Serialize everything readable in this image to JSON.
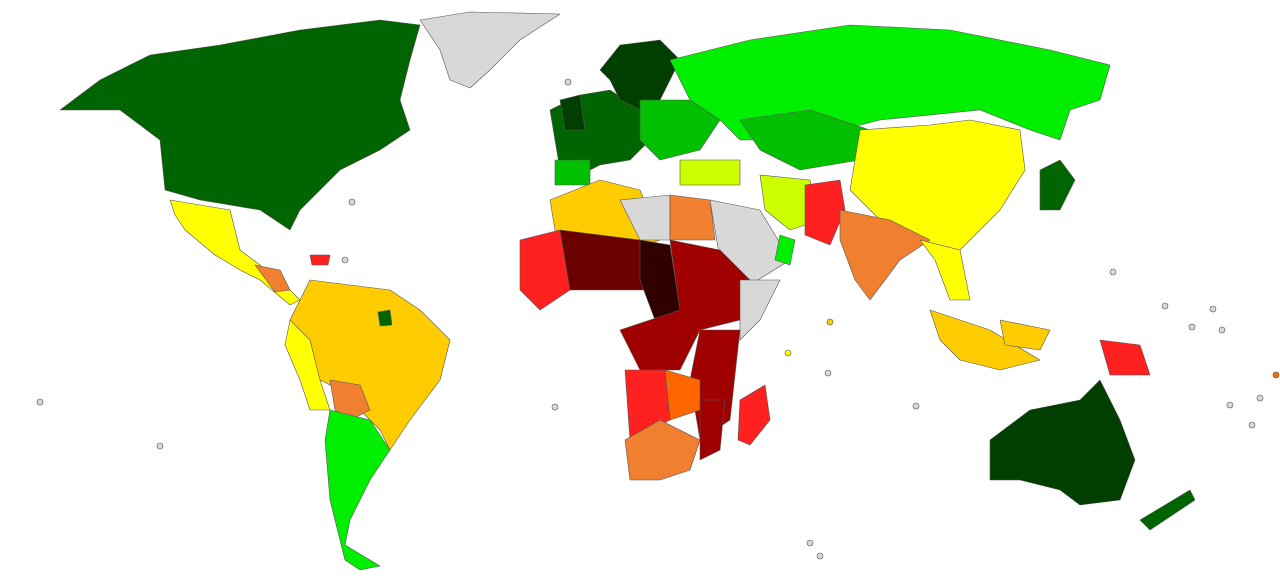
{
  "map": {
    "palette": [
      "#003f00",
      "#006400",
      "#00c000",
      "#00ee00",
      "#ccff00",
      "#ffff00",
      "#ffcc00",
      "#f08030",
      "#ff6600",
      "#ff2020",
      "#a00000",
      "#6a0000",
      "#300000",
      "#d8d8d8"
    ]
  }
}
